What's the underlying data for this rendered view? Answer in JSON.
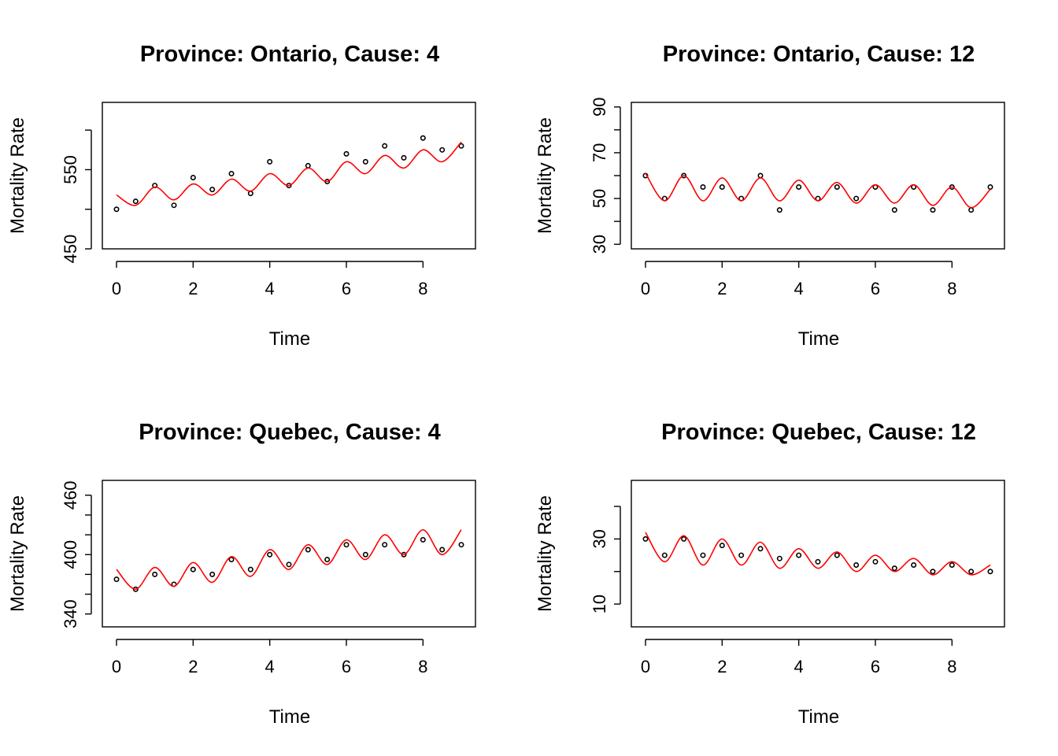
{
  "chart_data": [
    {
      "type": "scatter",
      "title": "Province: Ontario, Cause: 4",
      "xlabel": "Time",
      "ylabel": "Mortality Rate",
      "xlim": [
        0,
        9
      ],
      "ylim": [
        450,
        635
      ],
      "xticks": [
        0,
        2,
        4,
        6,
        8
      ],
      "yticks": [
        450,
        500,
        550,
        600
      ],
      "ytick_labels": [
        "450",
        "",
        "550",
        ""
      ],
      "grid": false,
      "series": [
        {
          "kind": "points",
          "x": [
            0,
            0.5,
            1,
            1.5,
            2,
            2.5,
            3,
            3.5,
            4,
            4.5,
            5,
            5.5,
            6,
            6.5,
            7,
            7.5,
            8,
            8.5,
            9
          ],
          "y": [
            500,
            510,
            530,
            505,
            540,
            525,
            545,
            520,
            560,
            530,
            555,
            535,
            570,
            560,
            580,
            565,
            590,
            575,
            580
          ]
        },
        {
          "kind": "fitted",
          "color": "#ff0000",
          "x": [
            0,
            0.5,
            1,
            1.5,
            2,
            2.5,
            3,
            3.5,
            4,
            4.5,
            5,
            5.5,
            6,
            6.5,
            7,
            7.5,
            8,
            8.5,
            9
          ],
          "y": [
            518,
            505,
            528,
            512,
            532,
            518,
            538,
            523,
            545,
            530,
            552,
            535,
            560,
            545,
            568,
            552,
            575,
            560,
            585
          ]
        }
      ]
    },
    {
      "type": "scatter",
      "title": "Province: Ontario, Cause: 12",
      "xlabel": "Time",
      "ylabel": "Mortality Rate",
      "xlim": [
        0,
        9
      ],
      "ylim": [
        28,
        92
      ],
      "xticks": [
        0,
        2,
        4,
        6,
        8
      ],
      "yticks": [
        30,
        40,
        50,
        60,
        70,
        80,
        90
      ],
      "ytick_labels": [
        "30",
        "",
        "50",
        "",
        "70",
        "",
        "90"
      ],
      "grid": false,
      "series": [
        {
          "kind": "points",
          "x": [
            0,
            0.5,
            1,
            1.5,
            2,
            2.5,
            3,
            3.5,
            4,
            4.5,
            5,
            5.5,
            6,
            6.5,
            7,
            7.5,
            8,
            8.5,
            9
          ],
          "y": [
            60,
            50,
            60,
            55,
            55,
            50,
            60,
            45,
            55,
            50,
            55,
            50,
            55,
            45,
            55,
            45,
            55,
            45,
            55
          ]
        },
        {
          "kind": "fitted",
          "color": "#ff0000",
          "x": [
            0,
            0.5,
            1,
            1.5,
            2,
            2.5,
            3,
            3.5,
            4,
            4.5,
            5,
            5.5,
            6,
            6.5,
            7,
            7.5,
            8,
            8.5,
            9
          ],
          "y": [
            61,
            49,
            60,
            49,
            59,
            49,
            59,
            49,
            58,
            49,
            57,
            48,
            56,
            48,
            56,
            47,
            55,
            46,
            54
          ]
        }
      ]
    },
    {
      "type": "scatter",
      "title": "Province: Quebec, Cause: 4",
      "xlabel": "Time",
      "ylabel": "Mortality Rate",
      "xlim": [
        0,
        9
      ],
      "ylim": [
        327,
        475
      ],
      "xticks": [
        0,
        2,
        4,
        6,
        8
      ],
      "yticks": [
        340,
        360,
        380,
        400,
        420,
        440,
        460
      ],
      "ytick_labels": [
        "340",
        "",
        "",
        "400",
        "",
        "",
        "460"
      ],
      "grid": false,
      "series": [
        {
          "kind": "points",
          "x": [
            0,
            0.5,
            1,
            1.5,
            2,
            2.5,
            3,
            3.5,
            4,
            4.5,
            5,
            5.5,
            6,
            6.5,
            7,
            7.5,
            8,
            8.5,
            9
          ],
          "y": [
            375,
            365,
            380,
            370,
            385,
            380,
            395,
            385,
            400,
            390,
            405,
            395,
            410,
            400,
            410,
            400,
            415,
            405,
            410
          ]
        },
        {
          "kind": "fitted",
          "color": "#ff0000",
          "x": [
            0,
            0.5,
            1,
            1.5,
            2,
            2.5,
            3,
            3.5,
            4,
            4.5,
            5,
            5.5,
            6,
            6.5,
            7,
            7.5,
            8,
            8.5,
            9
          ],
          "y": [
            385,
            365,
            387,
            368,
            392,
            372,
            398,
            378,
            405,
            385,
            410,
            390,
            415,
            395,
            420,
            400,
            425,
            400,
            425
          ]
        }
      ]
    },
    {
      "type": "scatter",
      "title": "Province: Quebec, Cause: 12",
      "xlabel": "Time",
      "ylabel": "Mortality Rate",
      "xlim": [
        0,
        9
      ],
      "ylim": [
        3,
        48
      ],
      "xticks": [
        0,
        2,
        4,
        6,
        8
      ],
      "yticks": [
        10,
        20,
        30,
        40
      ],
      "ytick_labels": [
        "10",
        "",
        "30",
        ""
      ],
      "grid": false,
      "series": [
        {
          "kind": "points",
          "x": [
            0,
            0.5,
            1,
            1.5,
            2,
            2.5,
            3,
            3.5,
            4,
            4.5,
            5,
            5.5,
            6,
            6.5,
            7,
            7.5,
            8,
            8.5,
            9
          ],
          "y": [
            30,
            25,
            30,
            25,
            28,
            25,
            27,
            24,
            25,
            23,
            25,
            22,
            23,
            21,
            22,
            20,
            22,
            20,
            20
          ]
        },
        {
          "kind": "fitted",
          "color": "#ff0000",
          "x": [
            0,
            0.5,
            1,
            1.5,
            2,
            2.5,
            3,
            3.5,
            4,
            4.5,
            5,
            5.5,
            6,
            6.5,
            7,
            7.5,
            8,
            8.5,
            9
          ],
          "y": [
            32,
            23,
            31,
            22,
            30,
            22,
            29,
            21,
            27,
            21,
            26,
            20,
            25,
            20,
            24,
            19,
            23,
            19,
            22
          ]
        }
      ]
    }
  ]
}
